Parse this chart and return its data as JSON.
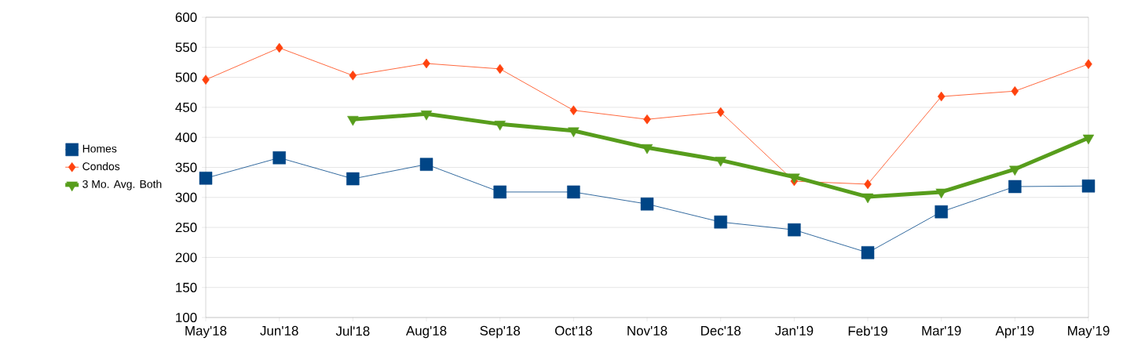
{
  "chart_data": {
    "type": "line",
    "categories": [
      "May'18",
      "Jun'18",
      "Jul'18",
      "Aug'18",
      "Sep'18",
      "Oct'18",
      "Nov'18",
      "Dec'18",
      "Jan'19",
      "Feb'19",
      "Mar'19",
      "Apr’19",
      "May’19"
    ],
    "series": [
      {
        "name": "Homes",
        "color": "#004586",
        "marker": "square",
        "values": [
          332,
          366,
          331,
          355,
          309,
          309,
          289,
          259,
          246,
          208,
          276,
          318,
          319
        ]
      },
      {
        "name": "Condos",
        "color": "#ff420e",
        "marker": "diamond",
        "values": [
          496,
          549,
          503,
          523,
          514,
          445,
          430,
          442,
          327,
          322,
          468,
          477,
          522
        ]
      },
      {
        "name": "3 Mo. Avg. Both",
        "color": "#579d1c",
        "marker": "triangle",
        "values": [
          null,
          null,
          430,
          439,
          422,
          411,
          383,
          362,
          334,
          301,
          309,
          347,
          399
        ]
      }
    ],
    "ylim": [
      100,
      600
    ],
    "yticks": [
      100,
      150,
      200,
      250,
      300,
      350,
      400,
      450,
      500,
      550,
      600
    ],
    "grid": "y",
    "legend": "left"
  }
}
